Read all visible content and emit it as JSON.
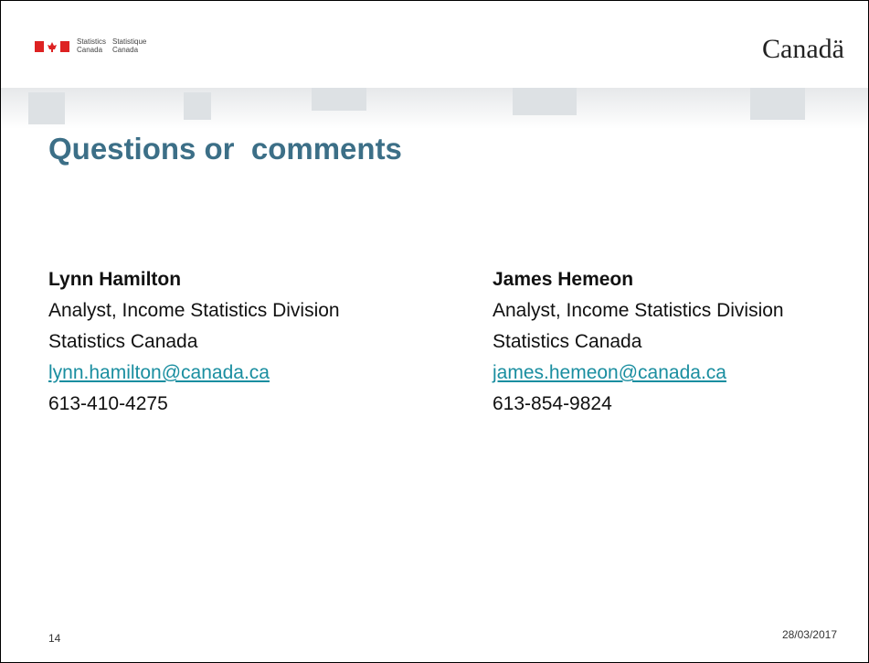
{
  "header": {
    "sig_en": [
      "Statistics",
      "Canada"
    ],
    "sig_fr": [
      "Statistique",
      "Canada"
    ],
    "wordmark": "Canadä"
  },
  "title": "Questions or  comments",
  "contacts": [
    {
      "name": "Lynn Hamilton",
      "role": "Analyst, Income Statistics Division",
      "org": "Statistics Canada",
      "email": "lynn.hamilton@canada.ca",
      "phone": "613-410-4275"
    },
    {
      "name": "James Hemeon",
      "role": "Analyst, Income Statistics Division",
      "org": "Statistics Canada",
      "email": "james.hemeon@canada.ca",
      "phone": "613-854-9824"
    }
  ],
  "footer": {
    "page": "14",
    "date": "28/03/2017"
  }
}
